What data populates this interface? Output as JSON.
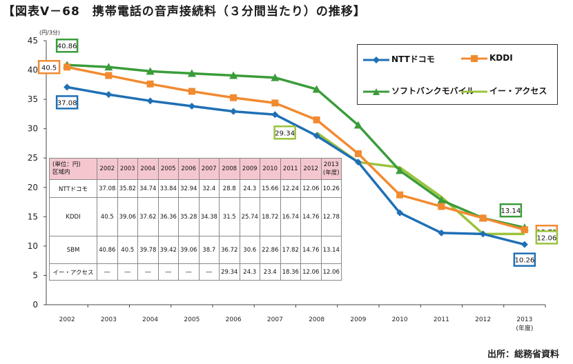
{
  "title": "【図表Ⅴ－68　携帯電話の音声接続料（３分間当たり）の推移】",
  "source": "出所：総務省資料",
  "chart_data": {
    "type": "line",
    "unit_label": "(円/3分)",
    "x": [
      "2002",
      "2003",
      "2004",
      "2005",
      "2006",
      "2007",
      "2008",
      "2009",
      "2010",
      "2011",
      "2012",
      "2013"
    ],
    "x_suffix_last": "(年度)",
    "ylim": [
      0,
      45
    ],
    "yticks": [
      0,
      5,
      10,
      15,
      20,
      25,
      30,
      35,
      40,
      45
    ],
    "grid": false,
    "legend_position": "top-right",
    "series": [
      {
        "name": "NTTドコモ",
        "color": "#1f6fb5",
        "marker": "diamond",
        "values": [
          37.08,
          35.82,
          34.74,
          33.84,
          32.94,
          32.4,
          28.8,
          24.3,
          15.66,
          12.24,
          12.06,
          10.26
        ]
      },
      {
        "name": "KDDI",
        "color": "#f28a30",
        "marker": "square",
        "values": [
          40.5,
          39.06,
          37.62,
          36.36,
          35.28,
          34.38,
          31.5,
          25.74,
          18.72,
          16.74,
          14.76,
          12.78
        ]
      },
      {
        "name": "ソフトバンクモバイル",
        "color": "#3a9c3a",
        "marker": "triangle",
        "values": [
          40.86,
          40.5,
          39.78,
          39.42,
          39.06,
          38.7,
          36.72,
          30.6,
          22.86,
          17.82,
          14.76,
          13.14
        ]
      },
      {
        "name": "イー・アクセス",
        "color": "#9ac33c",
        "marker": "none",
        "values": [
          null,
          null,
          null,
          null,
          null,
          null,
          29.34,
          24.3,
          23.4,
          18.36,
          12.06,
          12.06
        ]
      }
    ],
    "callouts": [
      {
        "text": "40.86",
        "color": "#3a9c3a"
      },
      {
        "text": "40.5",
        "color": "#f28a30"
      },
      {
        "text": "37.08",
        "color": "#1f6fb5"
      },
      {
        "text": "29.34",
        "color": "#9ac33c"
      },
      {
        "text": "13.14",
        "color": "#3a9c3a"
      },
      {
        "text": "12.78",
        "color": "#f28a30"
      },
      {
        "text": "12.06",
        "color": "#9ac33c"
      },
      {
        "text": "10.26",
        "color": "#1f6fb5"
      }
    ]
  },
  "table": {
    "header_line1": "(単位：円)",
    "header_line2": "区域内",
    "years": [
      "2002",
      "2003",
      "2004",
      "2005",
      "2006",
      "2007",
      "2008",
      "2009",
      "2010",
      "2011",
      "2012"
    ],
    "last_year_line1": "2013",
    "last_year_line2": "(年度)",
    "rows": [
      {
        "label": "NTTドコモ",
        "cells": [
          "37.08",
          "35.82",
          "34.74",
          "33.84",
          "32.94",
          "32.4",
          "28.8",
          "24.3",
          "15.66",
          "12.24",
          "12.06",
          "10.26"
        ]
      },
      {
        "label": "KDDI",
        "cells": [
          "40.5",
          "39.06",
          "37.62",
          "36.36",
          "35.28",
          "34.38",
          "31.5",
          "25.74",
          "18.72",
          "16.74",
          "14.76",
          "12.78"
        ]
      },
      {
        "label": "SBM",
        "cells": [
          "40.86",
          "40.5",
          "39.78",
          "39.42",
          "39.06",
          "38.7",
          "36.72",
          "30.6",
          "22.86",
          "17.82",
          "14.76",
          "13.14"
        ]
      },
      {
        "label": "イー・アクセス",
        "cells": [
          "―",
          "―",
          "―",
          "―",
          "―",
          "―",
          "29.34",
          "24.3",
          "23.4",
          "18.36",
          "12.06",
          "12.06"
        ]
      }
    ]
  }
}
